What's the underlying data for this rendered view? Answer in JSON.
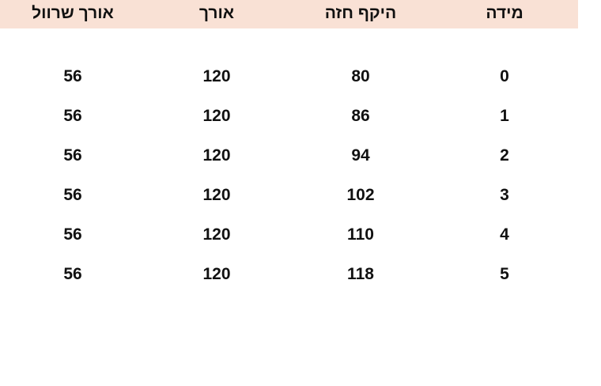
{
  "table": {
    "header_color": "#f9e1d5",
    "headers": [
      "מידה",
      "היקף חזה",
      "אורך",
      "אורך שרוול"
    ],
    "rows": [
      [
        "0",
        "80",
        "120",
        "56"
      ],
      [
        "1",
        "86",
        "120",
        "56"
      ],
      [
        "2",
        "94",
        "120",
        "56"
      ],
      [
        "3",
        "102",
        "120",
        "56"
      ],
      [
        "4",
        "110",
        "120",
        "56"
      ],
      [
        "5",
        "118",
        "120",
        "56"
      ]
    ]
  }
}
